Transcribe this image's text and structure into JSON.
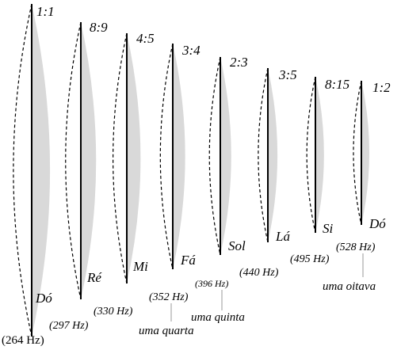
{
  "strings": [
    {
      "ratio": "1:1",
      "note": "Dó",
      "freq": "(264 Hz)"
    },
    {
      "ratio": "8:9",
      "note": "Ré",
      "freq": "(297 Hz)"
    },
    {
      "ratio": "4:5",
      "note": "Mi",
      "freq": "(330 Hz)"
    },
    {
      "ratio": "3:4",
      "note": "Fá",
      "freq": "(352 Hz)"
    },
    {
      "ratio": "2:3",
      "note": "Sol",
      "freq": "(396 Hz)"
    },
    {
      "ratio": "3:5",
      "note": "Lá",
      "freq": "(440 Hz)"
    },
    {
      "ratio": "8:15",
      "note": "Si",
      "freq": "(495 Hz)"
    },
    {
      "ratio": "1:2",
      "note": "Dó",
      "freq": "(528 Hz)"
    }
  ],
  "annotations": [
    "uma quarta",
    "uma quinta",
    "uma oitava"
  ]
}
